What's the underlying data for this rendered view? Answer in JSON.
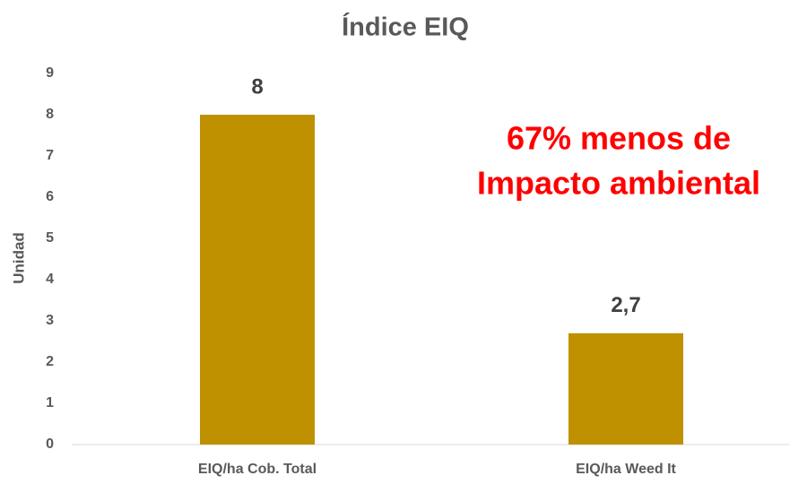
{
  "chart_data": {
    "type": "bar",
    "title": "Índice EIQ",
    "y_label": "Unidad",
    "categories": [
      "EIQ/ha Cob. Total",
      "EIQ/ha Weed It"
    ],
    "values": [
      8,
      2.7
    ],
    "value_labels": [
      "8",
      "2,7"
    ],
    "color": "#bf9000",
    "ylim": [
      0,
      9
    ],
    "yticks": [
      0,
      1,
      2,
      3,
      4,
      5,
      6,
      7,
      8,
      9
    ],
    "grid": false,
    "annotation": [
      "67% menos de",
      "Impacto ambiental"
    ],
    "annotation_color": "#ff0000"
  }
}
